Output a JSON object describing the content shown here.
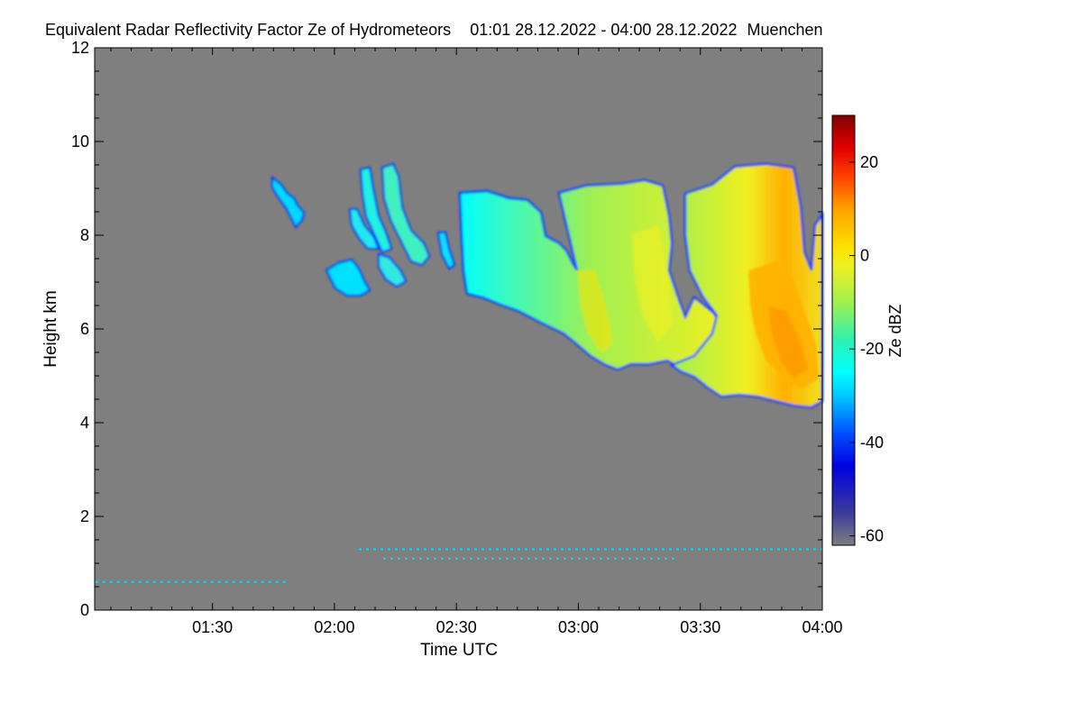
{
  "chart_data": {
    "type": "heatmap",
    "title": "Equivalent Radar Reflectivity Factor Ze of Hydrometeors",
    "time_range": "01:01 28.12.2022 - 04:00 28.12.2022",
    "location": "Muenchen",
    "xlabel": "Time UTC",
    "ylabel": "Height km",
    "x_range_hours": [
      1.017,
      4.0
    ],
    "x_ticks": [
      {
        "label": "01:30",
        "value": 1.5
      },
      {
        "label": "02:00",
        "value": 2.0
      },
      {
        "label": "02:30",
        "value": 2.5
      },
      {
        "label": "03:00",
        "value": 3.0
      },
      {
        "label": "03:30",
        "value": 3.5
      },
      {
        "label": "04:00",
        "value": 4.0
      }
    ],
    "ylim": [
      0,
      12
    ],
    "y_ticks": [
      0,
      2,
      4,
      6,
      8,
      10,
      12
    ],
    "colorbar": {
      "label": "Ze dBZ",
      "range": [
        -62,
        30
      ],
      "ticks": [
        -60,
        -40,
        -20,
        0,
        20
      ],
      "stops": [
        {
          "value": -62,
          "color": "#7f7f7f"
        },
        {
          "value": -55,
          "color": "#3a3a9a"
        },
        {
          "value": -45,
          "color": "#0000e0"
        },
        {
          "value": -38,
          "color": "#0050ff"
        },
        {
          "value": -30,
          "color": "#00c8ff"
        },
        {
          "value": -25,
          "color": "#00ffff"
        },
        {
          "value": -18,
          "color": "#30f0b0"
        },
        {
          "value": -10,
          "color": "#a0f050"
        },
        {
          "value": -2,
          "color": "#f0f020"
        },
        {
          "value": 2,
          "color": "#ffe000"
        },
        {
          "value": 10,
          "color": "#ffa000"
        },
        {
          "value": 17,
          "color": "#ff4000"
        },
        {
          "value": 23,
          "color": "#e00000"
        },
        {
          "value": 30,
          "color": "#800000"
        }
      ]
    },
    "background_color": "#7f7f7f",
    "cloud_features": [
      {
        "name": "small-fragment-1",
        "t_start": 1.73,
        "t_end": 1.87,
        "base_km": 8.1,
        "top_km": 9.2,
        "peak_dbz": -28
      },
      {
        "name": "small-fragment-2",
        "t_start": 1.98,
        "t_end": 2.13,
        "base_km": 6.6,
        "top_km": 7.4,
        "peak_dbz": -25
      },
      {
        "name": "fall-streaks",
        "t_start": 2.03,
        "t_end": 2.27,
        "base_km": 6.8,
        "top_km": 9.5,
        "peak_dbz": -24
      },
      {
        "name": "main-cloud-a",
        "t_start": 2.5,
        "t_end": 3.2,
        "base_km": 4.9,
        "top_km": 9.0,
        "peak_dbz": -8
      },
      {
        "name": "main-cloud-b",
        "t_start": 3.2,
        "t_end": 4.0,
        "base_km": 4.4,
        "top_km": 9.5,
        "peak_dbz": 8
      }
    ],
    "noise_lines_km": [
      0.6,
      1.1,
      1.3
    ]
  }
}
